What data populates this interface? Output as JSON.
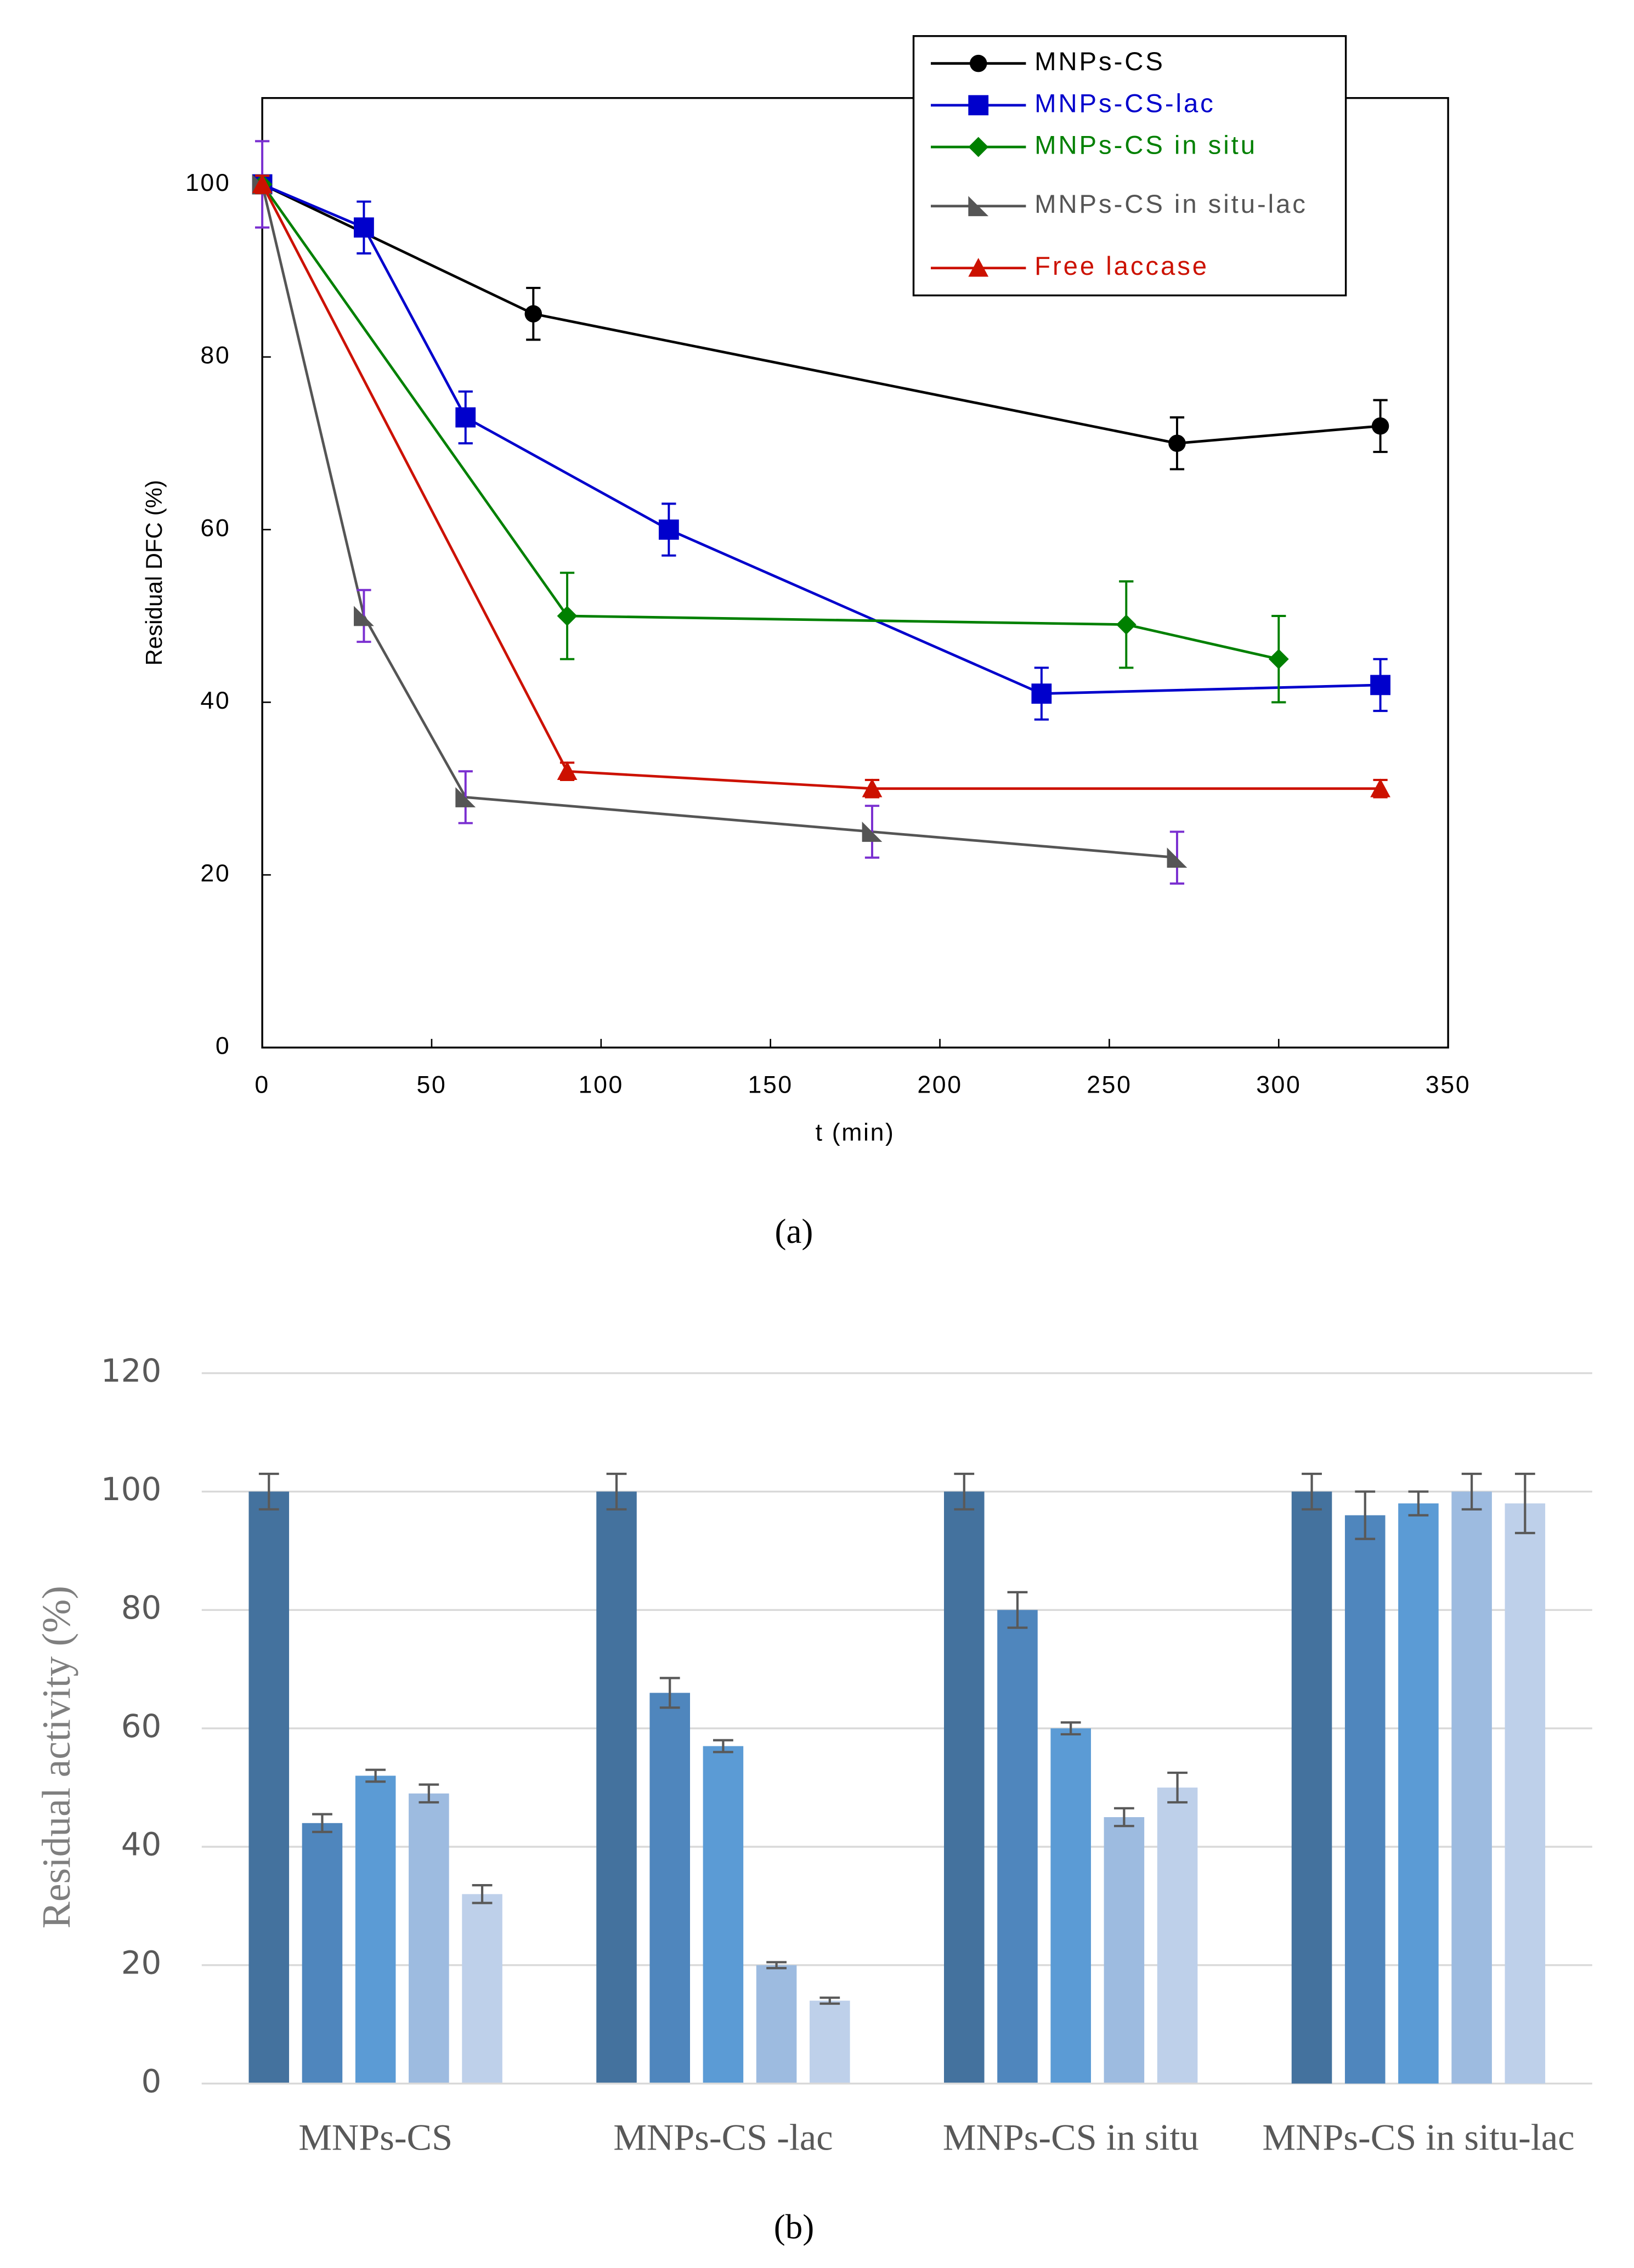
{
  "chart_data": [
    {
      "type": "line",
      "caption": "(a)",
      "xlabel": "t (min)",
      "ylabel": "Residual DFC (%)",
      "xlim": [
        0,
        350
      ],
      "xticks": [
        0,
        50,
        100,
        150,
        200,
        250,
        300,
        350
      ],
      "ylim": [
        0,
        110
      ],
      "yticks": [
        0,
        20,
        40,
        60,
        80,
        100
      ],
      "grid": false,
      "legend": "upper right",
      "series": [
        {
          "name": "MNPs-CS",
          "color": "#000000",
          "marker": "circle",
          "x": [
            0,
            80,
            270,
            330
          ],
          "values": [
            100,
            85,
            70,
            72
          ],
          "errors": [
            1,
            3,
            3,
            3
          ]
        },
        {
          "name": "MNPs-CS-lac",
          "color": "#0000cc",
          "marker": "square",
          "x": [
            0,
            30,
            60,
            120,
            230,
            330
          ],
          "values": [
            100,
            95,
            73,
            60,
            41,
            42
          ],
          "errors": [
            1,
            3,
            3,
            3,
            3,
            3
          ]
        },
        {
          "name": "MNPs-CS in situ",
          "color": "#008000",
          "marker": "diamond",
          "x": [
            0,
            90,
            255,
            300
          ],
          "values": [
            100,
            50,
            49,
            45
          ],
          "errors": [
            1,
            5,
            5,
            5
          ]
        },
        {
          "name": "MNPs-CS in situ-lac",
          "color": "#555555",
          "error_color": "#7a2fd0",
          "marker": "wedge",
          "x": [
            0,
            30,
            60,
            180,
            270
          ],
          "values": [
            100,
            50,
            29,
            25,
            22
          ],
          "errors": [
            5,
            3,
            3,
            3,
            3
          ]
        },
        {
          "name": "Free laccase",
          "color": "#cc1100",
          "marker": "triangle",
          "x": [
            0,
            90,
            180,
            330
          ],
          "values": [
            100,
            32,
            30,
            30
          ],
          "errors": [
            1,
            1,
            1,
            1
          ]
        }
      ]
    },
    {
      "type": "bar",
      "caption": "(b)",
      "ylabel": "Residual activity (%)",
      "categories": [
        "MNPs-CS",
        "MNPs-CS -lac",
        "MNPs-CS in situ",
        "MNPs-CS in situ-lac"
      ],
      "ylim": [
        0,
        120
      ],
      "yticks": [
        0,
        20,
        40,
        60,
        80,
        100,
        120
      ],
      "grid": true,
      "series": [
        {
          "color": "#44729e",
          "values": [
            100,
            100,
            100,
            100
          ],
          "errors": [
            3,
            3,
            3,
            3
          ]
        },
        {
          "color": "#4f86bd",
          "values": [
            44,
            66,
            80,
            96
          ],
          "errors": [
            1.5,
            2.5,
            3,
            4
          ]
        },
        {
          "color": "#5b9bd5",
          "values": [
            52,
            57,
            60,
            98
          ],
          "errors": [
            1,
            1,
            1,
            2
          ]
        },
        {
          "color": "#9dbbe0",
          "values": [
            49,
            20,
            45,
            100
          ],
          "errors": [
            1.5,
            0.5,
            1.5,
            3
          ]
        },
        {
          "color": "#bed0ea",
          "values": [
            32,
            14,
            50,
            98
          ],
          "errors": [
            1.5,
            0.5,
            2.5,
            5
          ]
        }
      ]
    }
  ]
}
